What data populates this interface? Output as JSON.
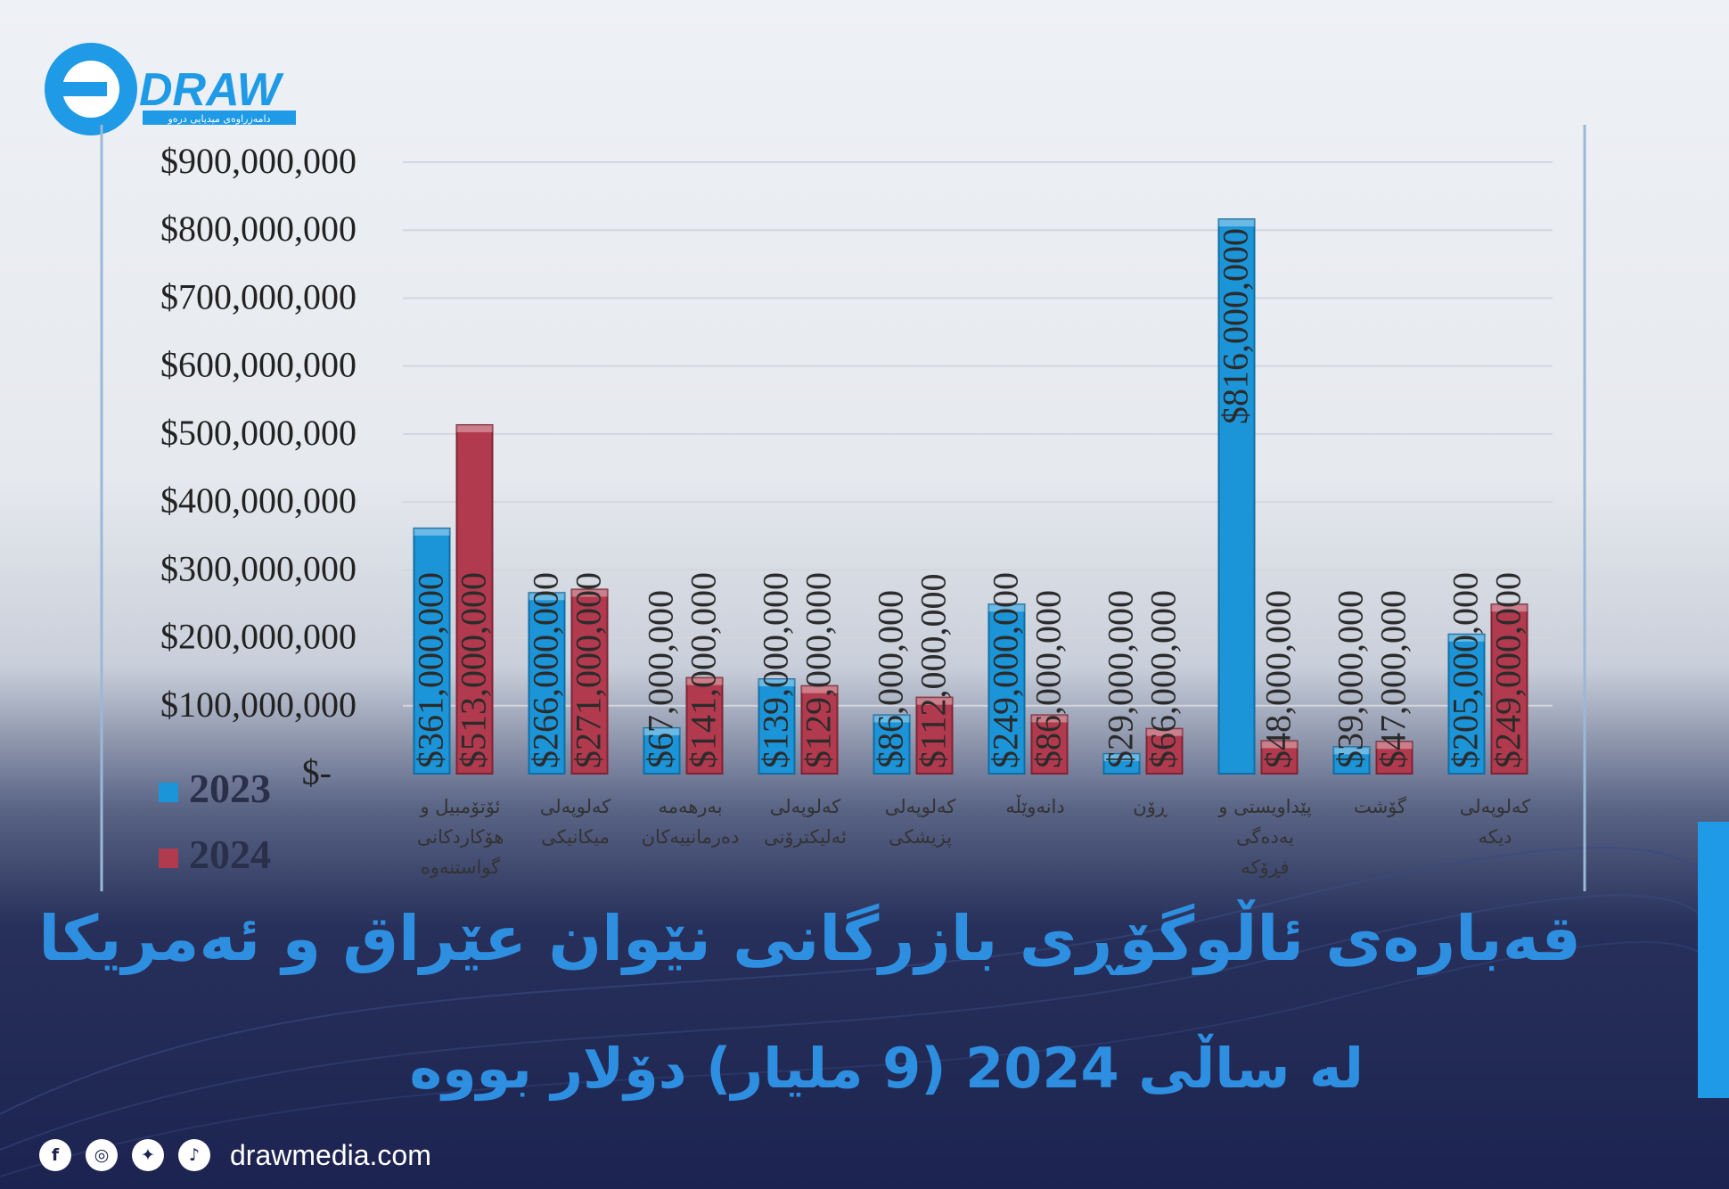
{
  "brand": {
    "logo_text": "DRAW",
    "logo_tagline": "دامەزراوەی میدیایی درەو",
    "website": "drawmedia.com",
    "accent_color": "#2e8fe0"
  },
  "headline": {
    "line1": "قەبارەی ئاڵوگۆڕی بازرگانی نێوان عێراق و ئەمریکا",
    "line2": "لە ساڵی 2024 (9 ملیار) دۆلار بووە"
  },
  "social_icons": [
    "facebook-icon",
    "instagram-icon",
    "twitter-icon",
    "tiktok-icon"
  ],
  "chart_data": {
    "type": "bar",
    "ylim": [
      0,
      900000000
    ],
    "y_ticks": [
      {
        "value": 0,
        "label": "$-"
      },
      {
        "value": 100000000,
        "label": "$100,000,000"
      },
      {
        "value": 200000000,
        "label": "$200,000,000"
      },
      {
        "value": 300000000,
        "label": "$300,000,000"
      },
      {
        "value": 400000000,
        "label": "$400,000,000"
      },
      {
        "value": 500000000,
        "label": "$500,000,000"
      },
      {
        "value": 600000000,
        "label": "$600,000,000"
      },
      {
        "value": 700000000,
        "label": "$700,000,000"
      },
      {
        "value": 800000000,
        "label": "$800,000,000"
      },
      {
        "value": 900000000,
        "label": "$900,000,000"
      }
    ],
    "grid": true,
    "legend_position": "bottom-left",
    "categories": [
      [
        "ئۆتۆمبیل و",
        "هۆکاردکانی",
        "گواستنەوە"
      ],
      [
        "کەلوپەلی",
        "میکانیکی"
      ],
      [
        "بەرهەمە",
        "دەرمانییەکان"
      ],
      [
        "کەلوپەلی",
        "ئەلیکترۆنی"
      ],
      [
        "کەلوپەلی",
        "پزیشکی"
      ],
      [
        "دانەوێڵە"
      ],
      [
        "ڕۆن"
      ],
      [
        "پێداویستی و",
        "یەدەگی",
        "فڕۆکە"
      ],
      [
        "گۆشت"
      ],
      [
        "کەلوپەلی",
        "دیکە"
      ]
    ],
    "series": [
      {
        "name": "2023",
        "color": "#1c95d8",
        "values": [
          361000000,
          266000000,
          67000000,
          139000000,
          86000000,
          249000000,
          29000000,
          816000000,
          39000000,
          205000000
        ],
        "labels": [
          "$361,000,000",
          "$266,000,000",
          "$67,000,000",
          "$139,000,000",
          "$86,000,000",
          "$249,000,000",
          "$29,000,000",
          "$816,000,000",
          "$39,000,000",
          "$205,000,000"
        ]
      },
      {
        "name": "2024",
        "color": "#b23a4e",
        "values": [
          513000000,
          271000000,
          141000000,
          129000000,
          112000000,
          86000000,
          66000000,
          48000000,
          47000000,
          249000000
        ],
        "labels": [
          "$513,000,000",
          "$271,000,000",
          "$141,000,000",
          "$129,000,000",
          "$112,000,000",
          "$86,000,000",
          "$66,000,000",
          "$48,000,000",
          "$47,000,000",
          "$249,000,000"
        ]
      }
    ]
  }
}
